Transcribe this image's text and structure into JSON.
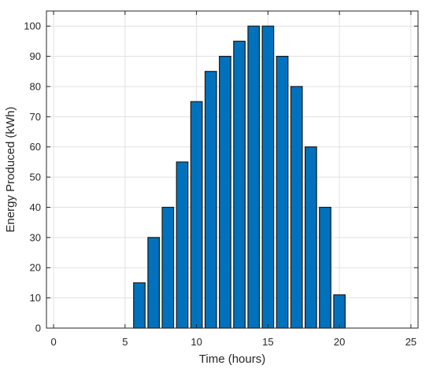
{
  "chart_data": {
    "type": "bar",
    "title": "",
    "xlabel": "Time (hours)",
    "ylabel": "Energy Produced  (kWh)",
    "x": [
      6,
      7,
      8,
      9,
      10,
      11,
      12,
      13,
      14,
      15,
      16,
      17,
      18,
      19,
      20
    ],
    "values": [
      15,
      30,
      40,
      55,
      75,
      85,
      90,
      95,
      100,
      100,
      90,
      80,
      60,
      40,
      11
    ],
    "xlim": [
      -0.5,
      25.5
    ],
    "ylim": [
      0,
      105
    ],
    "xticks": [
      0,
      5,
      10,
      15,
      20,
      25
    ],
    "yticks": [
      0,
      10,
      20,
      30,
      40,
      50,
      60,
      70,
      80,
      90,
      100
    ],
    "grid": true,
    "bar_color": "#0072BD"
  }
}
